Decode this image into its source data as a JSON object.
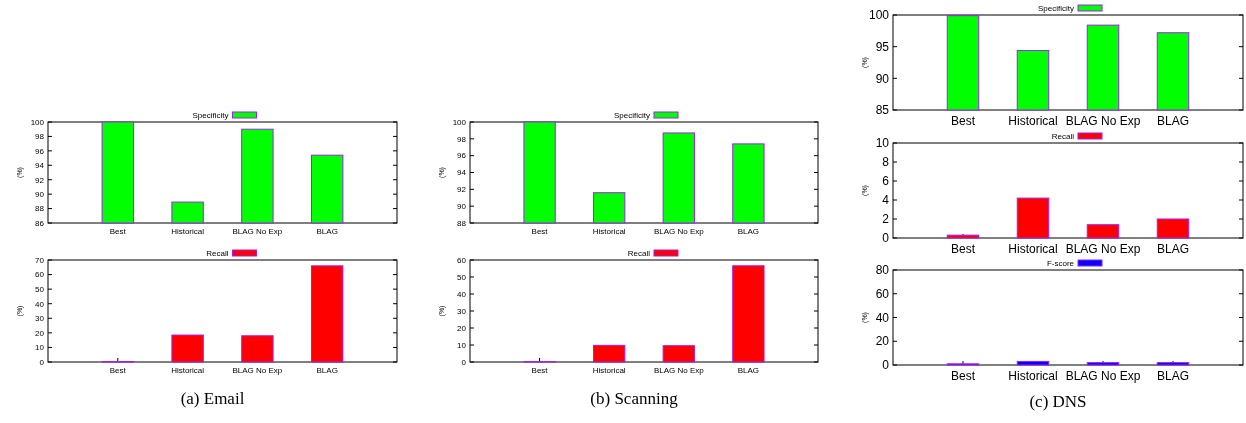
{
  "chart_data": [
    {
      "type": "bar",
      "ylabel": "(%)",
      "categories": [
        "Best",
        "Historical",
        "BLAG No Exp",
        "BLAG"
      ],
      "series": [
        {
          "name": "Specificity",
          "color": "#00ff00",
          "values": [
            100,
            88.9,
            99.0,
            95.4
          ]
        }
      ],
      "ylim": [
        86,
        100
      ],
      "yticks": [
        86,
        88,
        90,
        92,
        94,
        96,
        98,
        100
      ],
      "legend": "top"
    },
    {
      "type": "bar",
      "ylabel": "(%)",
      "categories": [
        "Best",
        "Historical",
        "BLAG No Exp",
        "BLAG"
      ],
      "series": [
        {
          "name": "Recall",
          "color": "#ff0000",
          "values": [
            0.3,
            18.5,
            18,
            66
          ]
        }
      ],
      "ylim": [
        0,
        70
      ],
      "yticks": [
        0,
        10,
        20,
        30,
        40,
        50,
        60,
        70
      ],
      "legend": "top",
      "annotations": [
        "(a) Email"
      ]
    },
    {
      "type": "bar",
      "ylabel": "(%)",
      "categories": [
        "Best",
        "Historical",
        "BLAG No Exp",
        "BLAG"
      ],
      "series": [
        {
          "name": "Specificity",
          "color": "#00ff00",
          "values": [
            100,
            91.6,
            98.7,
            97.4
          ]
        }
      ],
      "ylim": [
        88,
        100
      ],
      "yticks": [
        88,
        90,
        92,
        94,
        96,
        98,
        100
      ],
      "legend": "top"
    },
    {
      "type": "bar",
      "ylabel": "(%)",
      "categories": [
        "Best",
        "Historical",
        "BLAG No Exp",
        "BLAG"
      ],
      "series": [
        {
          "name": "Recall",
          "color": "#ff0000",
          "values": [
            0.2,
            9.8,
            9.6,
            56.6
          ]
        }
      ],
      "ylim": [
        0,
        60
      ],
      "yticks": [
        0,
        10,
        20,
        30,
        40,
        50,
        60
      ],
      "legend": "top",
      "annotations": [
        "(b) Scanning"
      ]
    },
    {
      "type": "bar",
      "ylabel": "(%)",
      "categories": [
        "Best",
        "Historical",
        "BLAG No Exp",
        "BLAG"
      ],
      "series": [
        {
          "name": "Specificity",
          "color": "#00ff00",
          "values": [
            99.9,
            94.4,
            98.4,
            97.2
          ]
        }
      ],
      "ylim": [
        85,
        100
      ],
      "yticks": [
        85,
        90,
        95,
        100
      ],
      "legend": "top"
    },
    {
      "type": "bar",
      "ylabel": "(%)",
      "categories": [
        "Best",
        "Historical",
        "BLAG No Exp",
        "BLAG"
      ],
      "series": [
        {
          "name": "Recall",
          "color": "#ff0000",
          "values": [
            0.3,
            4.2,
            1.4,
            2.0
          ]
        }
      ],
      "ylim": [
        0,
        10
      ],
      "yticks": [
        0,
        2,
        4,
        6,
        8,
        10
      ],
      "legend": "top"
    },
    {
      "type": "bar",
      "ylabel": "(%)",
      "categories": [
        "Best",
        "Historical",
        "BLAG No Exp",
        "BLAG"
      ],
      "series": [
        {
          "name": "F-score",
          "color": "#0000ff",
          "values": [
            1,
            3,
            2,
            2
          ]
        }
      ],
      "ylim": [
        0,
        80
      ],
      "yticks": [
        0,
        20,
        40,
        60,
        80
      ],
      "legend": "top",
      "annotations": [
        "(c) DNS"
      ]
    }
  ]
}
